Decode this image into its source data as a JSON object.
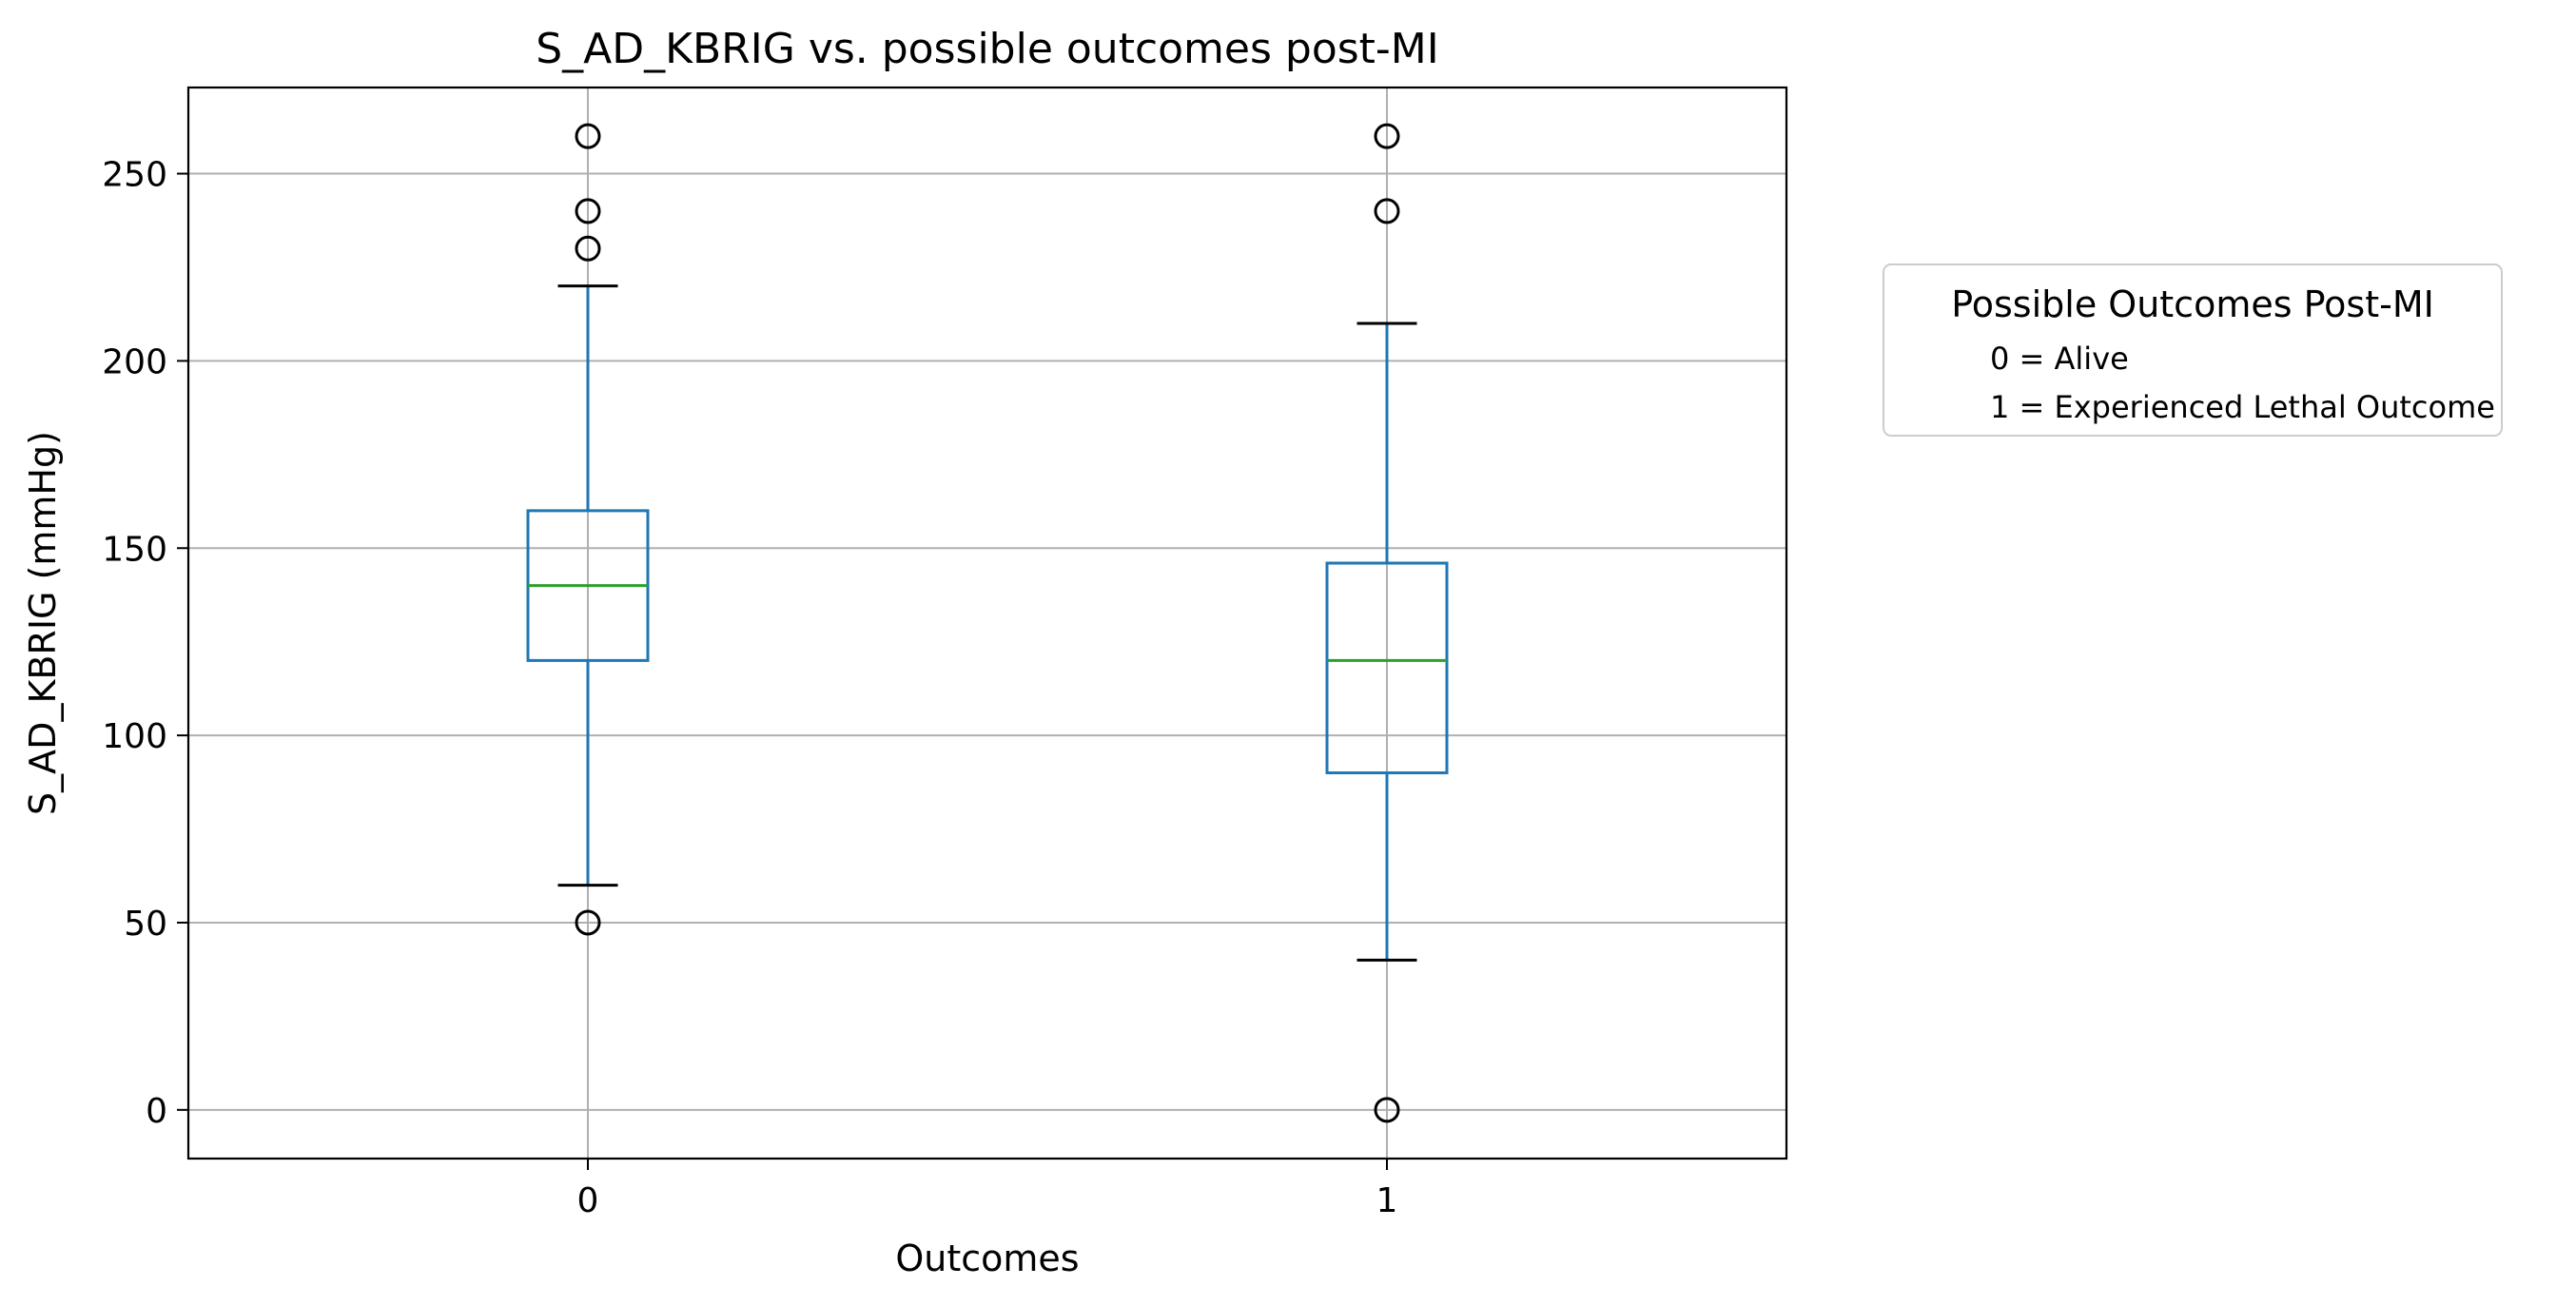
{
  "chart_data": {
    "type": "box",
    "title": "S_AD_KBRIG vs. possible outcomes post-MI",
    "xlabel": "Outcomes",
    "ylabel": "S_AD_KBRIG (mmHg)",
    "categories": [
      "0",
      "1"
    ],
    "ylim": [
      -13,
      273
    ],
    "yticks": [
      0,
      50,
      100,
      150,
      200,
      250
    ],
    "grid": true,
    "boxes": [
      {
        "category": "0",
        "whisker_low": 60,
        "q1": 120,
        "median": 140,
        "q3": 160,
        "whisker_high": 220,
        "outliers": [
          50,
          230,
          240,
          260
        ]
      },
      {
        "category": "1",
        "whisker_low": 40,
        "q1": 90,
        "median": 120,
        "q3": 146,
        "whisker_high": 210,
        "outliers": [
          0,
          240,
          260
        ]
      }
    ],
    "legend": {
      "title": "Possible Outcomes Post-MI",
      "entries": [
        "0 = Alive",
        "1 = Experienced Lethal Outcome"
      ],
      "placement": "outside-right"
    },
    "colors": {
      "box": "#1f77b4",
      "median": "#2ca02c",
      "whisker_cap": "#000000",
      "grid": "#b0b0b0"
    }
  }
}
